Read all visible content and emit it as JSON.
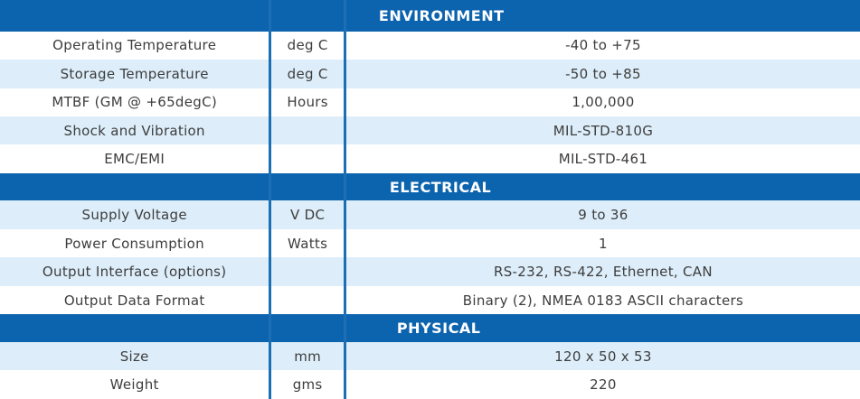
{
  "sections": [
    {
      "title": "ENVIRONMENT",
      "rows": [
        {
          "parameter": "Operating Temperature",
          "unit": "deg C",
          "value": "-40 to +75"
        },
        {
          "parameter": "Storage Temperature",
          "unit": "deg C",
          "value": "-50 to +85"
        },
        {
          "parameter": "MTBF (GM @ +65degC)",
          "unit": "Hours",
          "value": "1,00,000"
        },
        {
          "parameter": "Shock and Vibration",
          "unit": "",
          "value": "MIL-STD-810G"
        },
        {
          "parameter": "EMC/EMI",
          "unit": "",
          "value": "MIL-STD-461"
        }
      ]
    },
    {
      "title": "ELECTRICAL",
      "rows": [
        {
          "parameter": "Supply Voltage",
          "unit": "V DC",
          "value": "9 to 36"
        },
        {
          "parameter": "Power Consumption",
          "unit": "Watts",
          "value": "1"
        },
        {
          "parameter": "Output Interface (options)",
          "unit": "",
          "value": "RS-232, RS-422, Ethernet, CAN"
        },
        {
          "parameter": "Output Data Format",
          "unit": "",
          "value": "Binary (2), NMEA 0183 ASCII characters"
        }
      ]
    },
    {
      "title": "PHYSICAL",
      "rows": [
        {
          "parameter": "Size",
          "unit": "mm",
          "value": "120 x 50 x 53"
        },
        {
          "parameter": "Weight",
          "unit": "gms",
          "value": "220"
        }
      ]
    }
  ],
  "colors": {
    "header_bg": "#0c63ae",
    "header_text": "#ffffff",
    "stripe": "#ddeefa",
    "divider": "#1a6fb5",
    "text": "#3d3d3d"
  }
}
